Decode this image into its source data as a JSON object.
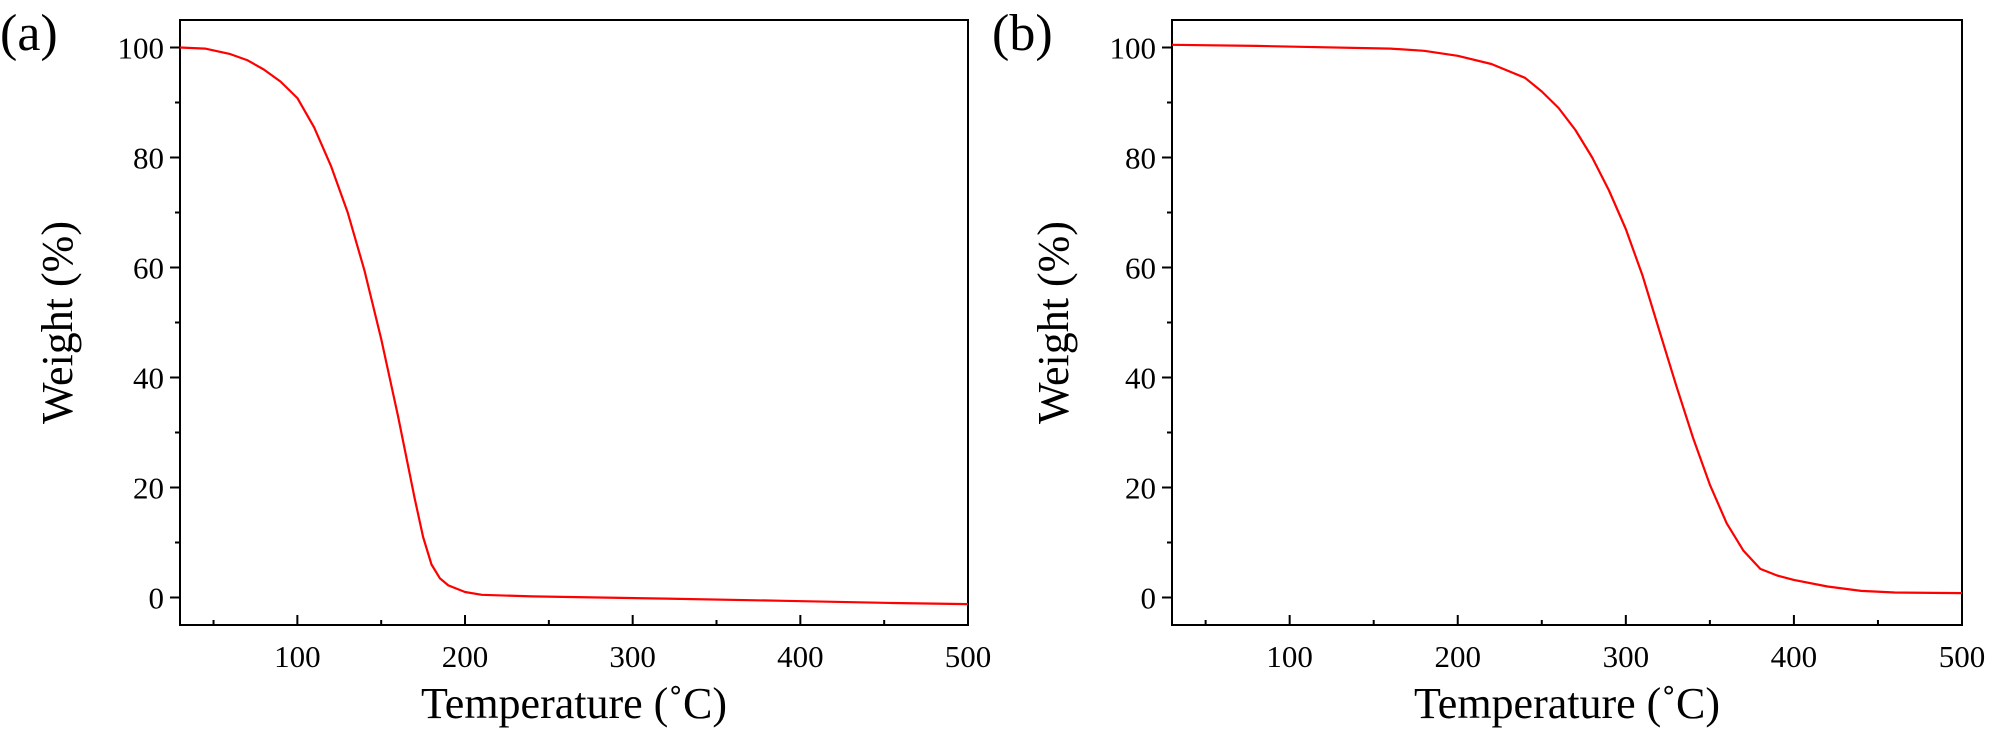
{
  "colors": {
    "curve": "#ff0000",
    "axis": "#000000",
    "background": "#ffffff"
  },
  "chart_data": [
    {
      "type": "line",
      "panel_label": "(a)",
      "xlabel": "Temperature (˚C)",
      "ylabel": "Weight (%)",
      "xlim": [
        30,
        500
      ],
      "ylim": [
        -5,
        105
      ],
      "xticks": [
        100,
        200,
        300,
        400,
        500
      ],
      "yticks": [
        0,
        20,
        40,
        60,
        80,
        100
      ],
      "grid": false,
      "series": [
        {
          "color": "#ff0000",
          "x": [
            30,
            45,
            60,
            70,
            80,
            90,
            100,
            110,
            120,
            130,
            140,
            150,
            160,
            170,
            175,
            180,
            185,
            190,
            200,
            210,
            240,
            320,
            390,
            455,
            500
          ],
          "y": [
            100,
            99.8,
            98.8,
            97.7,
            96,
            93.8,
            90.8,
            85.5,
            78.5,
            70,
            59.5,
            47,
            33,
            18,
            11,
            6,
            3.5,
            2.2,
            1,
            0.5,
            0.2,
            -0.2,
            -0.6,
            -1,
            -1.2
          ]
        }
      ]
    },
    {
      "type": "line",
      "panel_label": "(b)",
      "xlabel": "Temperature (˚C)",
      "ylabel": "Weight (%)",
      "xlim": [
        30,
        500
      ],
      "ylim": [
        -5,
        105
      ],
      "xticks": [
        100,
        200,
        300,
        400,
        500
      ],
      "yticks": [
        0,
        20,
        40,
        60,
        80,
        100
      ],
      "grid": false,
      "series": [
        {
          "color": "#ff0000",
          "x": [
            30,
            80,
            160,
            180,
            200,
            220,
            240,
            250,
            260,
            270,
            280,
            290,
            300,
            310,
            320,
            330,
            340,
            350,
            360,
            370,
            380,
            390,
            400,
            420,
            440,
            460,
            500
          ],
          "y": [
            100.5,
            100.3,
            99.8,
            99.4,
            98.5,
            97,
            94.5,
            92,
            89,
            85,
            80,
            74,
            67,
            58.5,
            48.5,
            38.5,
            29,
            20.5,
            13.5,
            8.5,
            5.2,
            4,
            3.2,
            2,
            1.2,
            0.9,
            0.8
          ]
        }
      ]
    }
  ]
}
